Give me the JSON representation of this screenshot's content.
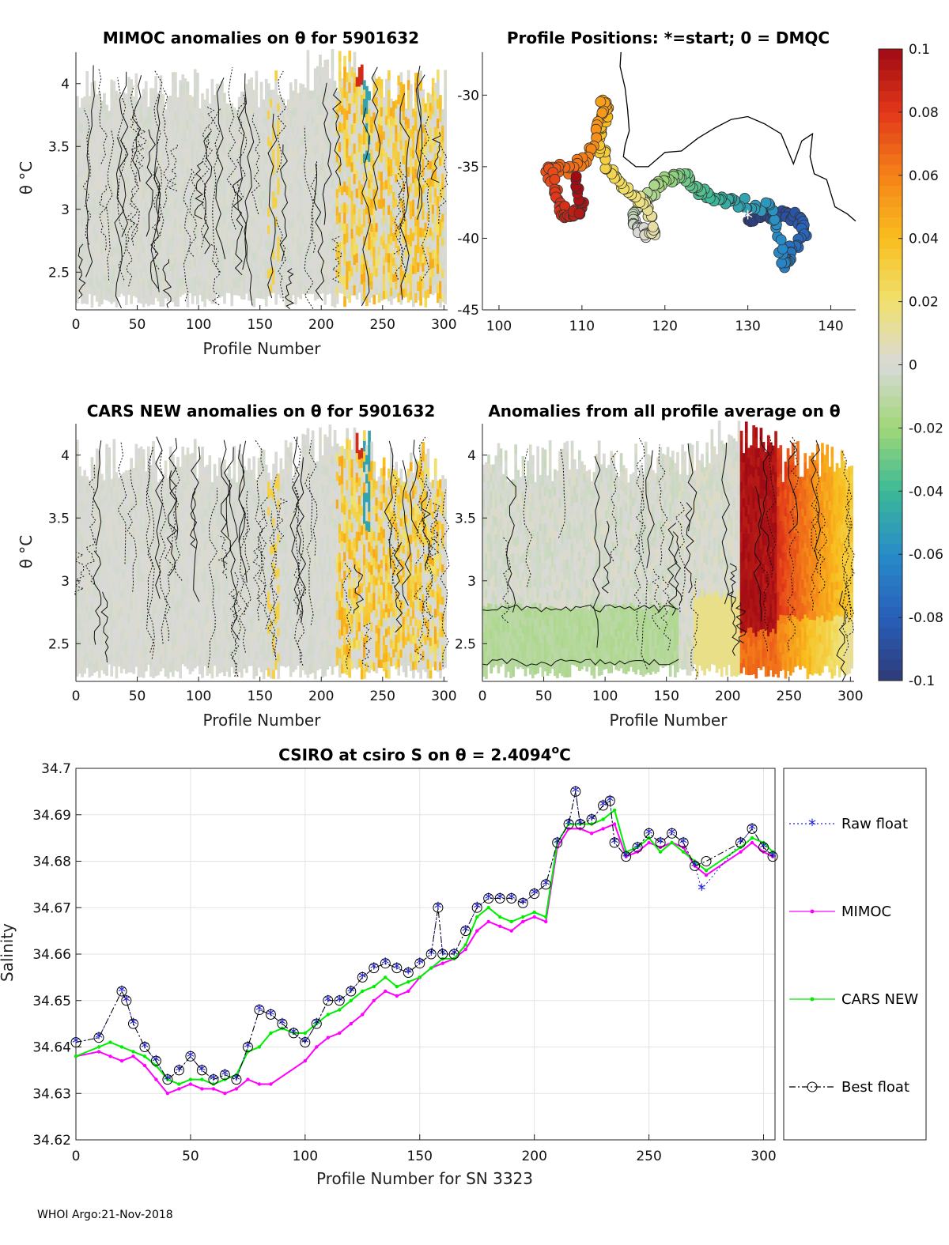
{
  "float_id": "5901632",
  "footer": "WHOI Argo:21-Nov-2018",
  "chart_data": [
    {
      "id": "mimoc",
      "type": "heatmap",
      "title": "MIMOC anomalies on θ  for 5901632",
      "xlabel": "Profile Number",
      "ylabel": "θ °C",
      "xlim": [
        0,
        303
      ],
      "ylim": [
        2.2,
        4.25
      ],
      "xticks": [
        0,
        50,
        100,
        150,
        200,
        250,
        300
      ],
      "yticks": [
        2.5,
        3,
        3.5,
        4
      ],
      "pattern": "mostly near-zero gray anomalies with warm yellow-orange streaks between profiles 210 and 300"
    },
    {
      "id": "positions",
      "type": "scatter",
      "title": "Profile Positions: *=start; 0 = DMQC",
      "xlim": [
        98,
        143
      ],
      "ylim": [
        -45,
        -27
      ],
      "xticks": [
        100,
        110,
        120,
        130,
        140
      ],
      "yticks": [
        -30,
        -35,
        -40,
        -45
      ],
      "start_marker": {
        "lon": 130,
        "lat": -38.6
      },
      "track": [
        [
          130,
          -38.6
        ],
        [
          133,
          -38.3
        ],
        [
          136,
          -38.5
        ],
        [
          137,
          -39.5
        ],
        [
          135,
          -41
        ],
        [
          134.5,
          -42
        ],
        [
          133,
          -38
        ],
        [
          129,
          -37.5
        ],
        [
          126,
          -37.2
        ],
        [
          124,
          -36.5
        ],
        [
          122,
          -35.5
        ],
        [
          120,
          -36
        ],
        [
          118,
          -37
        ],
        [
          116,
          -38.5
        ],
        [
          117,
          -39.5
        ],
        [
          119,
          -39.8
        ],
        [
          117.5,
          -37.5
        ],
        [
          115,
          -36.5
        ],
        [
          113,
          -35
        ],
        [
          112,
          -33
        ],
        [
          113,
          -31
        ],
        [
          112.5,
          -30.5
        ],
        [
          111,
          -34
        ],
        [
          109,
          -35.3
        ],
        [
          106,
          -35
        ],
        [
          107,
          -37
        ],
        [
          108,
          -38.5
        ],
        [
          110,
          -38
        ],
        [
          109,
          -35.8
        ]
      ],
      "coast_label": "Australia southern coastline"
    },
    {
      "id": "cars",
      "type": "heatmap",
      "title": "CARS NEW anomalies on θ for 5901632",
      "xlabel": "Profile Number",
      "ylabel": "θ °C",
      "xlim": [
        0,
        303
      ],
      "ylim": [
        2.2,
        4.25
      ],
      "xticks": [
        0,
        50,
        100,
        150,
        200,
        250,
        300
      ],
      "yticks": [
        2.5,
        3,
        3.5,
        4
      ],
      "pattern": "mostly near-zero gray anomalies with yellow streaks between profiles 210 and 300"
    },
    {
      "id": "allprof",
      "type": "heatmap",
      "title": "Anomalies from all profile average on θ",
      "xlabel": "Profile Number",
      "xlim": [
        0,
        303
      ],
      "ylim": [
        2.2,
        4.25
      ],
      "xticks": [
        0,
        50,
        100,
        150,
        200,
        250,
        300
      ],
      "yticks": [
        2.5,
        3,
        3.5,
        4
      ],
      "pattern": "slight negative (green) below 2.8 °C for profiles 0-160, strong positive (red) 210-240 decaying to orange/yellow by 300"
    },
    {
      "id": "colorbar",
      "type": "heatmap",
      "title": "",
      "range": [
        -0.1,
        0.1
      ],
      "tick_values": [
        0.1,
        0.08,
        0.06,
        0.04,
        0.02,
        0,
        -0.02,
        -0.04,
        -0.06,
        -0.08,
        -0.1
      ],
      "tick_labels": [
        "0.1",
        "0.08",
        "0.06",
        "0.04",
        "0.02",
        "0",
        "-0.02",
        "-0.04",
        "-0.06",
        "-0.08",
        "-0.1"
      ]
    },
    {
      "id": "salinity",
      "type": "line",
      "title": "CSIRO at csiro S on θ = 2.4094°C",
      "title_main": "CSIRO at csiro S on θ = 2.4094",
      "title_unit": "C",
      "xlabel": "Profile Number for SN 3323",
      "ylabel": "Salinity",
      "xlim": [
        0,
        305
      ],
      "ylim": [
        34.62,
        34.7
      ],
      "xticks": [
        0,
        50,
        100,
        150,
        200,
        250,
        300
      ],
      "yticks": [
        34.62,
        34.63,
        34.64,
        34.65,
        34.66,
        34.67,
        34.68,
        34.69,
        34.7
      ],
      "ytick_labels": [
        "34.62",
        "34.63",
        "34.64",
        "34.65",
        "34.66",
        "34.67",
        "34.68",
        "34.69",
        "34.7"
      ],
      "legend": [
        "Raw float",
        "MIMOC",
        "CARS NEW",
        "Best float"
      ],
      "series": [
        {
          "name": "Best float",
          "x": [
            0,
            10,
            20,
            22,
            25,
            30,
            35,
            40,
            45,
            50,
            55,
            60,
            65,
            70,
            75,
            80,
            85,
            90,
            95,
            100,
            105,
            110,
            115,
            120,
            125,
            130,
            135,
            140,
            145,
            150,
            155,
            158,
            160,
            165,
            170,
            175,
            180,
            185,
            190,
            195,
            200,
            205,
            210,
            215,
            218,
            220,
            225,
            230,
            233,
            235,
            240,
            245,
            250,
            255,
            260,
            265,
            270,
            275,
            290,
            295,
            300,
            304
          ],
          "values": [
            34.641,
            34.642,
            34.652,
            34.65,
            34.645,
            34.64,
            34.637,
            34.633,
            34.635,
            34.638,
            34.635,
            34.633,
            34.634,
            34.633,
            34.64,
            34.648,
            34.647,
            34.645,
            34.643,
            34.641,
            34.645,
            34.65,
            34.65,
            34.652,
            34.655,
            34.657,
            34.658,
            34.657,
            34.656,
            34.658,
            34.66,
            34.67,
            34.66,
            34.66,
            34.665,
            34.67,
            34.672,
            34.672,
            34.672,
            34.671,
            34.673,
            34.675,
            34.684,
            34.688,
            34.695,
            34.688,
            34.689,
            34.692,
            34.693,
            34.684,
            34.681,
            34.683,
            34.686,
            34.684,
            34.686,
            34.684,
            34.679,
            34.68,
            34.684,
            34.687,
            34.683,
            34.681
          ]
        },
        {
          "name": "Raw float",
          "x": [
            0,
            10,
            20,
            22,
            25,
            30,
            35,
            40,
            45,
            50,
            55,
            60,
            65,
            70,
            75,
            80,
            85,
            90,
            95,
            100,
            105,
            110,
            115,
            120,
            125,
            130,
            135,
            140,
            145,
            150,
            155,
            158,
            160,
            165,
            170,
            175,
            180,
            185,
            190,
            195,
            200,
            205,
            210,
            215,
            218,
            220,
            225,
            230,
            233,
            235,
            240,
            245,
            250,
            255,
            260,
            265,
            270,
            273,
            290,
            295,
            300,
            304
          ],
          "values": [
            34.641,
            34.642,
            34.652,
            34.65,
            34.645,
            34.64,
            34.637,
            34.633,
            34.635,
            34.638,
            34.635,
            34.633,
            34.634,
            34.633,
            34.64,
            34.648,
            34.647,
            34.645,
            34.643,
            34.641,
            34.645,
            34.65,
            34.65,
            34.652,
            34.655,
            34.657,
            34.658,
            34.657,
            34.656,
            34.658,
            34.66,
            34.67,
            34.66,
            34.66,
            34.665,
            34.67,
            34.672,
            34.672,
            34.672,
            34.671,
            34.673,
            34.675,
            34.684,
            34.688,
            34.695,
            34.688,
            34.689,
            34.692,
            34.693,
            34.684,
            34.681,
            34.683,
            34.686,
            34.684,
            34.686,
            34.684,
            34.679,
            34.674,
            34.684,
            34.687,
            34.683,
            34.681
          ]
        },
        {
          "name": "MIMOC",
          "x": [
            0,
            10,
            15,
            20,
            25,
            30,
            35,
            40,
            45,
            50,
            55,
            60,
            65,
            70,
            75,
            80,
            85,
            100,
            105,
            110,
            115,
            120,
            125,
            130,
            135,
            140,
            145,
            150,
            155,
            160,
            165,
            170,
            175,
            180,
            185,
            190,
            195,
            200,
            205,
            210,
            215,
            220,
            225,
            230,
            235,
            240,
            245,
            250,
            255,
            260,
            265,
            270,
            275,
            290,
            295,
            300,
            304
          ],
          "values": [
            34.638,
            34.639,
            34.638,
            34.637,
            34.638,
            34.636,
            34.633,
            34.63,
            34.631,
            34.632,
            34.631,
            34.631,
            34.63,
            34.631,
            34.633,
            34.632,
            34.632,
            34.637,
            34.64,
            34.642,
            34.643,
            34.645,
            34.647,
            34.65,
            34.652,
            34.651,
            34.652,
            34.655,
            34.657,
            34.658,
            34.659,
            34.661,
            34.665,
            34.667,
            34.666,
            34.665,
            34.667,
            34.668,
            34.667,
            34.683,
            34.687,
            34.687,
            34.686,
            34.687,
            34.688,
            34.681,
            34.682,
            34.684,
            34.683,
            34.684,
            34.683,
            34.679,
            34.677,
            34.682,
            34.684,
            34.682,
            34.681
          ]
        },
        {
          "name": "CARS NEW",
          "x": [
            0,
            10,
            15,
            20,
            25,
            30,
            35,
            40,
            45,
            50,
            55,
            60,
            65,
            70,
            75,
            80,
            85,
            90,
            95,
            100,
            105,
            110,
            115,
            120,
            125,
            130,
            135,
            140,
            145,
            150,
            155,
            160,
            165,
            170,
            175,
            180,
            185,
            190,
            195,
            200,
            205,
            210,
            215,
            220,
            225,
            230,
            235,
            240,
            245,
            250,
            255,
            260,
            265,
            270,
            275,
            290,
            295,
            300,
            304
          ],
          "values": [
            34.638,
            34.64,
            34.641,
            34.64,
            34.639,
            34.638,
            34.636,
            34.633,
            34.632,
            34.633,
            34.633,
            34.632,
            34.633,
            34.634,
            34.639,
            34.64,
            34.643,
            34.644,
            34.643,
            34.643,
            34.645,
            34.647,
            34.648,
            34.65,
            34.652,
            34.653,
            34.655,
            34.653,
            34.654,
            34.655,
            34.657,
            34.659,
            34.659,
            34.662,
            34.668,
            34.67,
            34.668,
            34.667,
            34.668,
            34.669,
            34.668,
            34.684,
            34.688,
            34.688,
            34.688,
            34.689,
            34.691,
            34.682,
            34.683,
            34.685,
            34.682,
            34.684,
            34.682,
            34.68,
            34.678,
            34.683,
            34.685,
            34.684,
            34.682
          ]
        }
      ]
    }
  ],
  "colors": {
    "raw_float": "#1f1fd9",
    "mimoc": "#ff00ff",
    "cars": "#00ee00",
    "best": "#000000",
    "neutral": "#d9d9d9"
  }
}
